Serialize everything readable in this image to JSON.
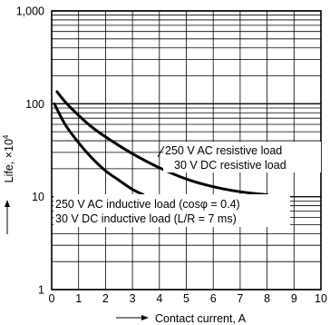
{
  "chart_data": {
    "type": "line",
    "title": "",
    "xlabel": "Contact current, A",
    "ylabel": "Life, ×10",
    "ylabel_exponent": "4",
    "xscale": "linear",
    "yscale": "log",
    "xlim": [
      0,
      10
    ],
    "ylim": [
      1,
      1000
    ],
    "xticks": [
      "0",
      "1",
      "2",
      "3",
      "4",
      "5",
      "6",
      "7",
      "8",
      "9",
      "10"
    ],
    "yticks": [
      {
        "value": 1,
        "label": "1"
      },
      {
        "value": 10,
        "label": "10"
      },
      {
        "value": 100,
        "label": "100"
      },
      {
        "value": 1000,
        "label": "1,000"
      }
    ],
    "grid": true,
    "series": [
      {
        "name": "250 V AC resistive load / 30 V DC resistive load",
        "x": [
          0.2,
          0.5,
          1.0,
          1.5,
          2.0,
          3.0,
          4.0,
          5.0,
          6.0,
          7.0,
          8.0
        ],
        "y": [
          135,
          105,
          75,
          56,
          44,
          29,
          20.5,
          15.5,
          12.8,
          11.3,
          10.5
        ]
      },
      {
        "name": "250 V AC inductive load (cosφ = 0.4) / 30 V DC inductive load (L/R = 7 ms)",
        "x": [
          0.1,
          0.5,
          1.0,
          1.5,
          2.0,
          2.5,
          3.0,
          3.4
        ],
        "y": [
          100,
          60,
          38,
          26,
          19,
          15,
          12,
          10.5
        ]
      }
    ],
    "annotations": [
      {
        "line1": "250 V AC resistive load",
        "line2": "30 V DC resistive load"
      },
      {
        "line1": "250 V AC inductive load (cosφ = 0.4)",
        "line2": "30 V DC  inductive load (L/R = 7 ms)"
      }
    ]
  }
}
